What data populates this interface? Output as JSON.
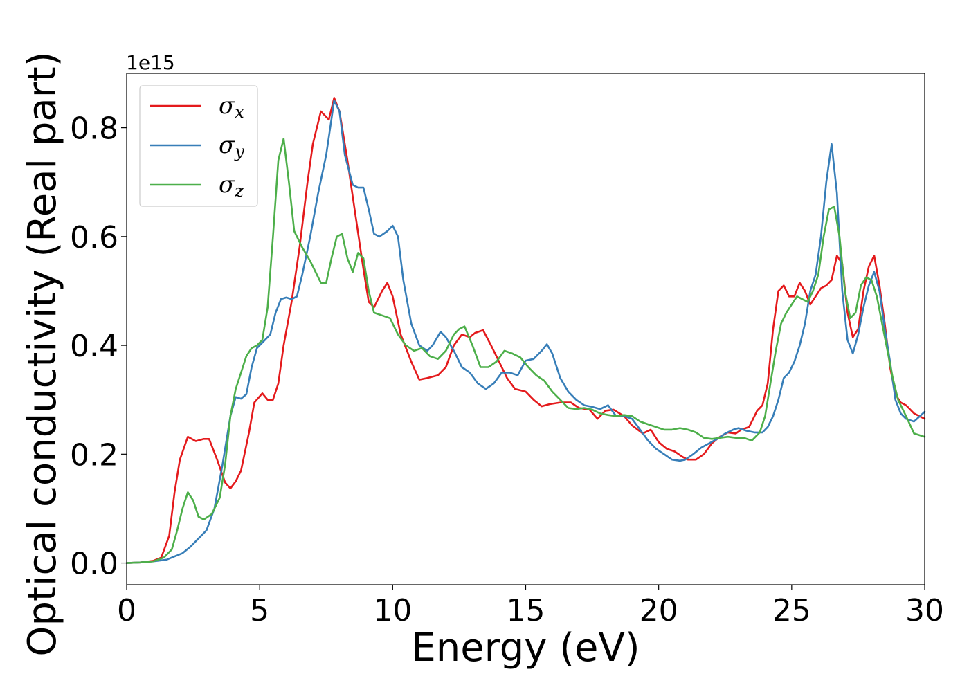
{
  "chart_data": {
    "type": "line",
    "xlabel": "Energy (eV)",
    "ylabel": "Optical conductivity (Real part)",
    "y_offset_text": "1e15",
    "xlim": [
      0,
      30
    ],
    "ylim": [
      -0.04,
      0.9
    ],
    "xticks": [
      0,
      5,
      10,
      15,
      20,
      25,
      30
    ],
    "xtick_labels": [
      "0",
      "5",
      "10",
      "15",
      "20",
      "25",
      "30"
    ],
    "yticks": [
      0.0,
      0.2,
      0.4,
      0.6,
      0.8
    ],
    "ytick_labels": [
      "0.0",
      "0.2",
      "0.4",
      "0.6",
      "0.8"
    ],
    "grid": false,
    "legend_position": "upper-left",
    "series": [
      {
        "name": "σx",
        "symbol": "σ",
        "subscript": "x",
        "color": "#e41a1c",
        "x": [
          0,
          0.5,
          1.0,
          1.3,
          1.6,
          1.8,
          2.0,
          2.3,
          2.6,
          2.9,
          3.1,
          3.4,
          3.7,
          3.9,
          4.1,
          4.3,
          4.6,
          4.8,
          5.1,
          5.3,
          5.5,
          5.7,
          5.9,
          6.2,
          6.5,
          6.8,
          7.0,
          7.3,
          7.5,
          7.6,
          7.8,
          8.0,
          8.3,
          8.6,
          8.9,
          9.1,
          9.3,
          9.6,
          9.8,
          10.0,
          10.3,
          10.7,
          11.0,
          11.3,
          11.7,
          12.0,
          12.3,
          12.6,
          12.9,
          13.1,
          13.4,
          13.7,
          14.0,
          14.3,
          14.6,
          15.0,
          15.3,
          15.6,
          15.9,
          16.3,
          16.7,
          17.0,
          17.4,
          17.7,
          18.0,
          18.3,
          18.7,
          19.0,
          19.4,
          19.7,
          20.0,
          20.3,
          20.6,
          20.9,
          21.1,
          21.4,
          21.7,
          22.0,
          22.3,
          22.6,
          22.9,
          23.1,
          23.4,
          23.7,
          23.9,
          24.1,
          24.3,
          24.5,
          24.7,
          24.9,
          25.1,
          25.3,
          25.5,
          25.7,
          25.9,
          26.1,
          26.3,
          26.5,
          26.7,
          26.9,
          27.1,
          27.3,
          27.5,
          27.7,
          27.9,
          28.1,
          28.3,
          28.5,
          28.7,
          28.9,
          29.1,
          29.3,
          29.6,
          30.0
        ],
        "y": [
          0,
          0.001,
          0.004,
          0.01,
          0.05,
          0.13,
          0.19,
          0.232,
          0.224,
          0.228,
          0.228,
          0.19,
          0.148,
          0.137,
          0.15,
          0.17,
          0.24,
          0.295,
          0.312,
          0.3,
          0.3,
          0.33,
          0.4,
          0.48,
          0.58,
          0.7,
          0.77,
          0.83,
          0.82,
          0.815,
          0.855,
          0.83,
          0.74,
          0.64,
          0.54,
          0.48,
          0.47,
          0.5,
          0.515,
          0.49,
          0.42,
          0.37,
          0.337,
          0.34,
          0.345,
          0.36,
          0.4,
          0.42,
          0.415,
          0.423,
          0.428,
          0.4,
          0.37,
          0.34,
          0.32,
          0.315,
          0.3,
          0.288,
          0.292,
          0.295,
          0.295,
          0.285,
          0.282,
          0.265,
          0.28,
          0.282,
          0.27,
          0.253,
          0.238,
          0.245,
          0.222,
          0.21,
          0.205,
          0.195,
          0.19,
          0.19,
          0.2,
          0.22,
          0.232,
          0.24,
          0.238,
          0.245,
          0.25,
          0.28,
          0.29,
          0.33,
          0.43,
          0.5,
          0.51,
          0.49,
          0.49,
          0.515,
          0.5,
          0.475,
          0.49,
          0.505,
          0.51,
          0.52,
          0.565,
          0.55,
          0.46,
          0.415,
          0.43,
          0.5,
          0.545,
          0.565,
          0.51,
          0.44,
          0.36,
          0.31,
          0.295,
          0.29,
          0.275,
          0.265
        ]
      },
      {
        "name": "σy",
        "symbol": "σ",
        "subscript": "y",
        "color": "#377eb8",
        "x": [
          0,
          0.5,
          1.0,
          1.5,
          1.8,
          2.1,
          2.4,
          2.7,
          3.0,
          3.3,
          3.6,
          3.9,
          4.1,
          4.3,
          4.5,
          4.7,
          4.9,
          5.1,
          5.4,
          5.6,
          5.8,
          6.0,
          6.2,
          6.4,
          6.6,
          6.9,
          7.2,
          7.5,
          7.8,
          8.0,
          8.2,
          8.5,
          8.7,
          8.9,
          9.1,
          9.3,
          9.5,
          9.8,
          10.0,
          10.2,
          10.4,
          10.7,
          11.0,
          11.3,
          11.5,
          11.8,
          12.0,
          12.3,
          12.6,
          12.9,
          13.2,
          13.5,
          13.8,
          14.1,
          14.4,
          14.7,
          15.0,
          15.3,
          15.6,
          15.8,
          16.0,
          16.3,
          16.6,
          16.9,
          17.2,
          17.5,
          17.8,
          18.1,
          18.4,
          18.7,
          19.0,
          19.3,
          19.6,
          19.9,
          20.2,
          20.5,
          20.8,
          21.0,
          21.3,
          21.6,
          21.9,
          22.2,
          22.5,
          22.8,
          23.0,
          23.3,
          23.6,
          23.9,
          24.1,
          24.3,
          24.5,
          24.7,
          24.9,
          25.1,
          25.3,
          25.5,
          25.7,
          25.9,
          26.1,
          26.3,
          26.5,
          26.7,
          26.9,
          27.1,
          27.3,
          27.5,
          27.7,
          27.9,
          28.1,
          28.3,
          28.5,
          28.7,
          28.9,
          29.1,
          29.3,
          29.6,
          30.0
        ],
        "y": [
          0,
          0.001,
          0.003,
          0.006,
          0.012,
          0.018,
          0.03,
          0.045,
          0.06,
          0.1,
          0.18,
          0.27,
          0.305,
          0.302,
          0.31,
          0.36,
          0.395,
          0.405,
          0.42,
          0.46,
          0.485,
          0.488,
          0.485,
          0.49,
          0.53,
          0.6,
          0.68,
          0.75,
          0.85,
          0.83,
          0.75,
          0.695,
          0.69,
          0.69,
          0.65,
          0.605,
          0.6,
          0.61,
          0.62,
          0.6,
          0.52,
          0.44,
          0.4,
          0.39,
          0.4,
          0.425,
          0.415,
          0.39,
          0.36,
          0.35,
          0.33,
          0.32,
          0.33,
          0.35,
          0.35,
          0.345,
          0.372,
          0.375,
          0.39,
          0.402,
          0.385,
          0.34,
          0.315,
          0.3,
          0.29,
          0.287,
          0.283,
          0.29,
          0.27,
          0.27,
          0.265,
          0.245,
          0.225,
          0.21,
          0.2,
          0.19,
          0.188,
          0.19,
          0.2,
          0.212,
          0.22,
          0.228,
          0.238,
          0.245,
          0.248,
          0.243,
          0.24,
          0.24,
          0.25,
          0.27,
          0.3,
          0.34,
          0.35,
          0.37,
          0.4,
          0.44,
          0.5,
          0.53,
          0.6,
          0.7,
          0.77,
          0.68,
          0.5,
          0.41,
          0.385,
          0.42,
          0.47,
          0.51,
          0.535,
          0.5,
          0.43,
          0.37,
          0.3,
          0.275,
          0.265,
          0.26,
          0.278
        ]
      },
      {
        "name": "σz",
        "symbol": "σ",
        "subscript": "z",
        "color": "#4daf4a",
        "x": [
          0,
          0.5,
          1.0,
          1.4,
          1.7,
          1.9,
          2.1,
          2.3,
          2.5,
          2.7,
          2.9,
          3.2,
          3.5,
          3.7,
          3.9,
          4.1,
          4.3,
          4.5,
          4.7,
          4.9,
          5.1,
          5.3,
          5.5,
          5.7,
          5.9,
          6.1,
          6.3,
          6.6,
          6.9,
          7.1,
          7.3,
          7.5,
          7.7,
          7.9,
          8.1,
          8.3,
          8.5,
          8.7,
          8.9,
          9.1,
          9.3,
          9.6,
          9.9,
          10.2,
          10.5,
          10.8,
          11.1,
          11.4,
          11.7,
          12.0,
          12.3,
          12.5,
          12.7,
          13.0,
          13.3,
          13.6,
          13.9,
          14.2,
          14.5,
          14.8,
          15.1,
          15.4,
          15.7,
          16.0,
          16.3,
          16.6,
          16.9,
          17.2,
          17.5,
          17.8,
          18.1,
          18.4,
          18.7,
          19.0,
          19.3,
          19.6,
          19.9,
          20.2,
          20.5,
          20.8,
          21.1,
          21.4,
          21.7,
          22.0,
          22.3,
          22.6,
          22.9,
          23.2,
          23.5,
          23.8,
          24.0,
          24.2,
          24.4,
          24.6,
          24.8,
          25.0,
          25.2,
          25.4,
          25.6,
          25.8,
          26.0,
          26.2,
          26.4,
          26.6,
          26.8,
          27.0,
          27.2,
          27.4,
          27.6,
          27.8,
          28.0,
          28.2,
          28.4,
          28.6,
          28.8,
          29.0,
          29.3,
          29.6,
          30.0
        ],
        "y": [
          0,
          0.001,
          0.003,
          0.01,
          0.025,
          0.06,
          0.1,
          0.13,
          0.115,
          0.085,
          0.08,
          0.09,
          0.12,
          0.18,
          0.27,
          0.32,
          0.35,
          0.38,
          0.395,
          0.4,
          0.41,
          0.47,
          0.6,
          0.74,
          0.78,
          0.7,
          0.61,
          0.58,
          0.555,
          0.535,
          0.515,
          0.515,
          0.56,
          0.6,
          0.605,
          0.56,
          0.535,
          0.57,
          0.56,
          0.5,
          0.46,
          0.455,
          0.45,
          0.42,
          0.4,
          0.39,
          0.395,
          0.38,
          0.375,
          0.39,
          0.42,
          0.43,
          0.435,
          0.4,
          0.36,
          0.36,
          0.37,
          0.39,
          0.385,
          0.378,
          0.36,
          0.345,
          0.335,
          0.315,
          0.3,
          0.285,
          0.283,
          0.285,
          0.282,
          0.275,
          0.272,
          0.27,
          0.272,
          0.27,
          0.26,
          0.255,
          0.25,
          0.245,
          0.245,
          0.248,
          0.245,
          0.24,
          0.23,
          0.228,
          0.23,
          0.232,
          0.23,
          0.23,
          0.225,
          0.24,
          0.27,
          0.33,
          0.39,
          0.44,
          0.46,
          0.475,
          0.49,
          0.485,
          0.48,
          0.5,
          0.53,
          0.6,
          0.65,
          0.655,
          0.6,
          0.5,
          0.45,
          0.46,
          0.51,
          0.525,
          0.52,
          0.49,
          0.44,
          0.39,
          0.34,
          0.3,
          0.27,
          0.238,
          0.232
        ]
      }
    ]
  }
}
